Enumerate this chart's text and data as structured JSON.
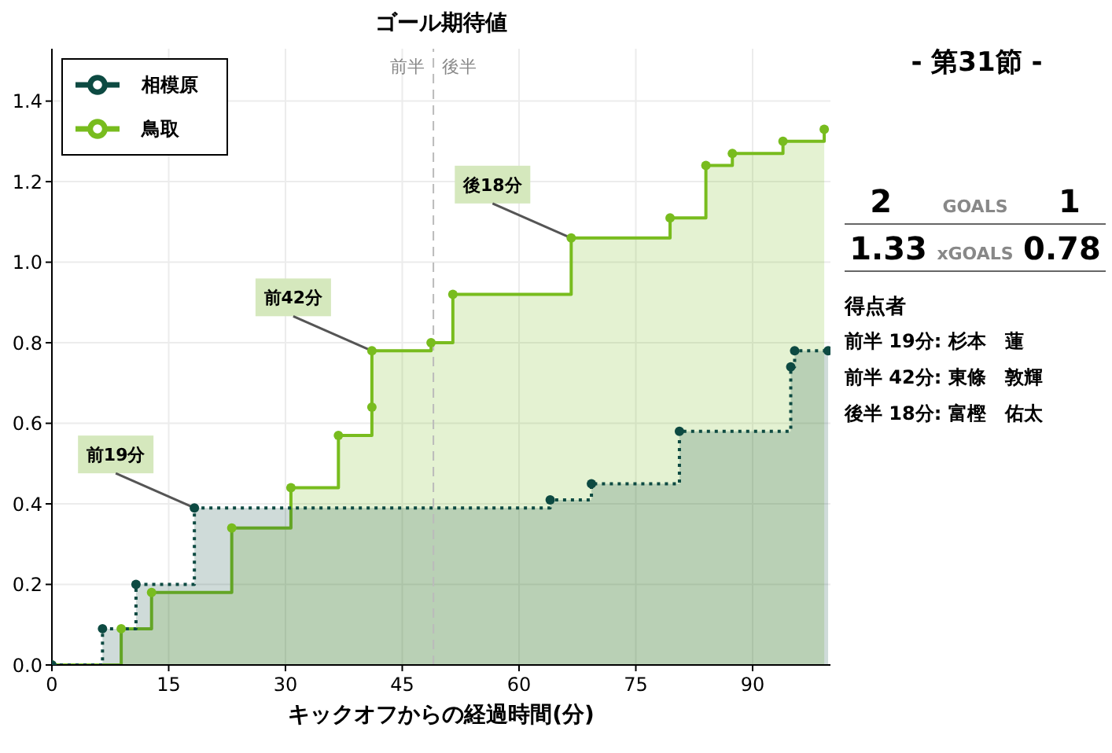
{
  "chart_data": [
    {
      "type": "step",
      "title": "ゴール期待値",
      "xlabel": "キックオフからの経過時間(分)",
      "xlim": [
        0,
        100
      ],
      "xticks": [
        0,
        15,
        30,
        45,
        60,
        75,
        90
      ],
      "ylim": [
        0,
        1.53
      ],
      "yticks": [
        {
          "value": 0,
          "label": "0.0"
        },
        {
          "value": 0.2,
          "label": "0.2"
        },
        {
          "value": 0.4,
          "label": "0.4"
        },
        {
          "value": 0.6,
          "label": "0.6"
        },
        {
          "value": 0.8,
          "label": "0.8"
        },
        {
          "value": 1,
          "label": "1.0"
        },
        {
          "value": 1.2,
          "label": "1.2"
        },
        {
          "value": 1.4,
          "label": "1.4"
        }
      ],
      "grid": true,
      "legend": "top left",
      "marker": "circle",
      "series": [
        {
          "name": "鳥取",
          "color": "#78bc1e",
          "line_style": "solid",
          "x": [
            0,
            8.9,
            12.8,
            23.1,
            30.7,
            36.8,
            41.1,
            41.1,
            48.7,
            51.5,
            66.7,
            79.4,
            84.0,
            87.4,
            93.9,
            99.2
          ],
          "values": [
            0,
            0.09,
            0.18,
            0.34,
            0.44,
            0.57,
            0.64,
            0.78,
            0.8,
            0.92,
            1.06,
            1.11,
            1.24,
            1.27,
            1.3,
            1.33
          ]
        },
        {
          "name": "相模原",
          "color": "#0d4a42",
          "line_style": "dotted",
          "x": [
            0,
            6.5,
            10.8,
            18.3,
            64.0,
            69.3,
            80.6,
            94.9,
            95.4,
            99.7
          ],
          "values": [
            0,
            0.09,
            0.2,
            0.39,
            0.41,
            0.45,
            0.58,
            0.74,
            0.78,
            0.78
          ]
        }
      ],
      "ref_lines": [
        {
          "axis": "x",
          "value": 49,
          "label": "前半　後半",
          "color": "#bbbbbb",
          "line_style": "dashed"
        }
      ],
      "annotations": [
        {
          "text": "前19分",
          "x": 18.3,
          "y": 0.39
        },
        {
          "text": "前42分",
          "x": 41.1,
          "y": 0.78
        },
        {
          "text": "後18分",
          "x": 66.7,
          "y": 1.06
        }
      ]
    },
    {
      "type": "other",
      "title": "- 第31節 -",
      "annotations": [
        "2",
        "GOALS",
        "1",
        "1.33",
        "xGOALS",
        "0.78",
        "得点者",
        "前半 19分: 杉本　蓮",
        "前半 42分: 東條　敦輝",
        "後半 18分: 富樫　佑太"
      ]
    }
  ]
}
